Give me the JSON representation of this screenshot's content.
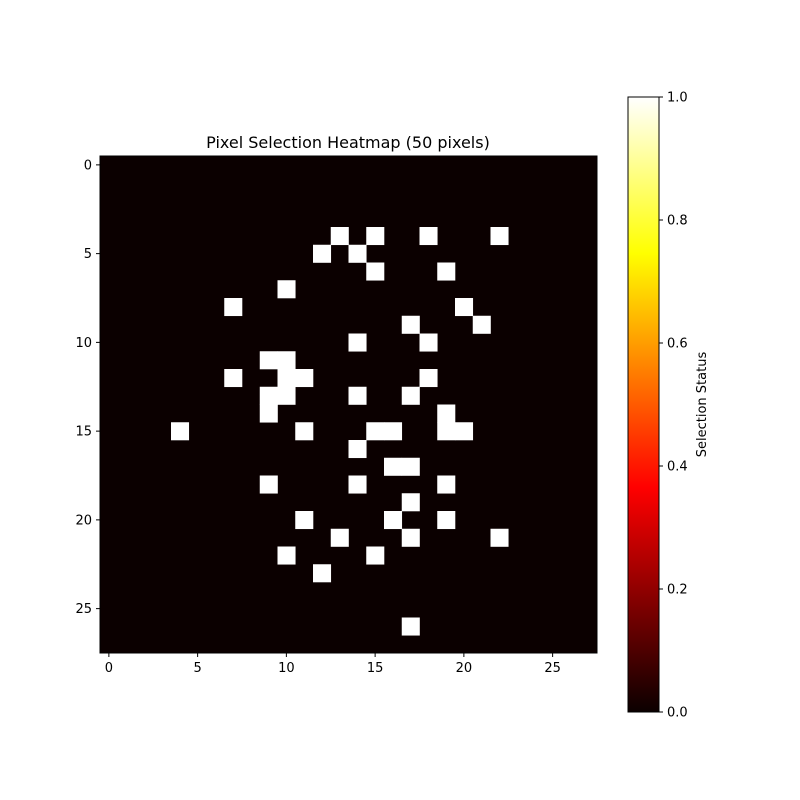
{
  "chart_data": {
    "type": "heatmap",
    "title": "Pixel Selection Heatmap (50 pixels)",
    "xlabel": "",
    "ylabel": "",
    "grid_size": [
      28,
      28
    ],
    "xlim": [
      -0.5,
      27.5
    ],
    "ylim": [
      27.5,
      -0.5
    ],
    "x_ticks": [
      0,
      5,
      10,
      15,
      20,
      25
    ],
    "y_ticks": [
      0,
      5,
      10,
      15,
      20,
      25
    ],
    "value_range": [
      0,
      1
    ],
    "colormap": "hot",
    "selected_value": 1,
    "background_value": 0,
    "selected_pixels": [
      [
        4,
        13
      ],
      [
        4,
        15
      ],
      [
        4,
        18
      ],
      [
        4,
        22
      ],
      [
        5,
        12
      ],
      [
        5,
        14
      ],
      [
        6,
        15
      ],
      [
        6,
        19
      ],
      [
        7,
        10
      ],
      [
        8,
        7
      ],
      [
        8,
        20
      ],
      [
        9,
        17
      ],
      [
        9,
        21
      ],
      [
        10,
        14
      ],
      [
        10,
        18
      ],
      [
        11,
        9
      ],
      [
        11,
        10
      ],
      [
        12,
        7
      ],
      [
        12,
        10
      ],
      [
        12,
        11
      ],
      [
        12,
        18
      ],
      [
        13,
        9
      ],
      [
        13,
        10
      ],
      [
        13,
        14
      ],
      [
        13,
        17
      ],
      [
        14,
        9
      ],
      [
        14,
        19
      ],
      [
        15,
        4
      ],
      [
        15,
        11
      ],
      [
        15,
        15
      ],
      [
        15,
        16
      ],
      [
        15,
        19
      ],
      [
        15,
        20
      ],
      [
        16,
        14
      ],
      [
        17,
        16
      ],
      [
        17,
        17
      ],
      [
        18,
        9
      ],
      [
        18,
        14
      ],
      [
        18,
        19
      ],
      [
        19,
        17
      ],
      [
        20,
        11
      ],
      [
        20,
        16
      ],
      [
        20,
        19
      ],
      [
        21,
        13
      ],
      [
        21,
        17
      ],
      [
        21,
        22
      ],
      [
        22,
        10
      ],
      [
        22,
        15
      ],
      [
        23,
        12
      ],
      [
        26,
        17
      ]
    ],
    "colorbar": {
      "label": "Selection Status",
      "ticks": [
        "0.0",
        "0.2",
        "0.4",
        "0.6",
        "0.8",
        "1.0"
      ],
      "tick_values": [
        0,
        0.2,
        0.4,
        0.6,
        0.8,
        1.0
      ]
    }
  }
}
